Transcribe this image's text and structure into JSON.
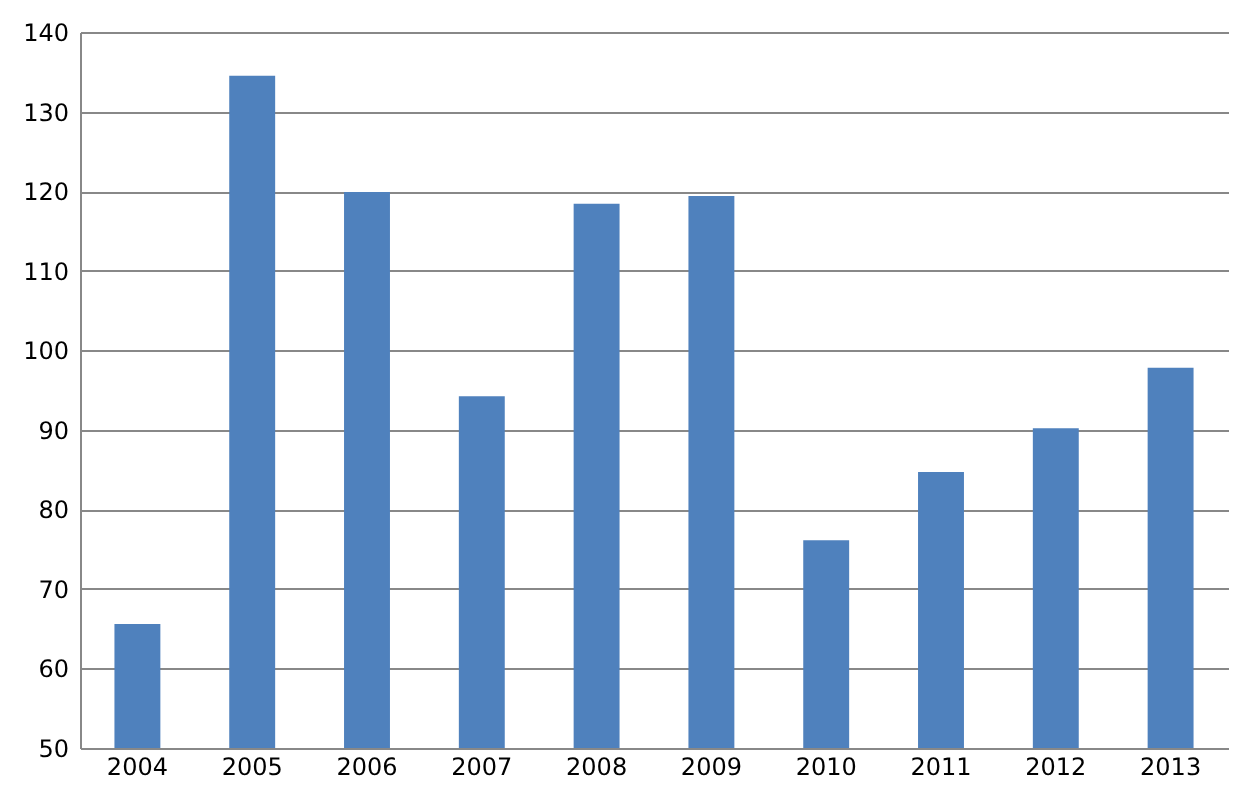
{
  "chart_data": {
    "type": "bar",
    "categories": [
      "2004",
      "2005",
      "2006",
      "2007",
      "2008",
      "2009",
      "2010",
      "2011",
      "2012",
      "2013"
    ],
    "values": [
      65.6,
      134.5,
      119.9,
      94.2,
      118.4,
      119.4,
      76.1,
      84.7,
      90.2,
      97.8
    ],
    "color": "#4f81bd",
    "ylim": [
      50,
      140
    ],
    "yticks": [
      50,
      60,
      70,
      80,
      90,
      100,
      110,
      120,
      130,
      140
    ],
    "grid": "y"
  }
}
